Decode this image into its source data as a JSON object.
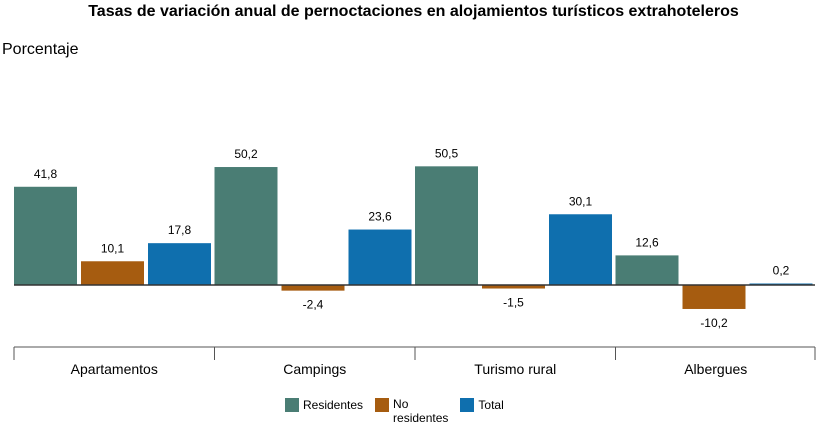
{
  "chart_data": {
    "type": "bar",
    "title": "Tasas de variación anual de pernoctaciones en alojamientos turísticos extrahoteleros",
    "ylabel": "Porcentaje",
    "categories": [
      "Apartamentos",
      "Campings",
      "Turismo rural",
      "Albergues"
    ],
    "series": [
      {
        "name": "Residentes",
        "color": "#4a7d74",
        "values": [
          41.8,
          50.2,
          50.5,
          12.6
        ],
        "labels": [
          "41,8",
          "50,2",
          "50,5",
          "12,6"
        ]
      },
      {
        "name": "No residentes",
        "color": "#a65c10",
        "values": [
          10.1,
          -2.4,
          -1.5,
          -10.2
        ],
        "labels": [
          "10,1",
          "-2,4",
          "-1,5",
          "-10,2"
        ]
      },
      {
        "name": "Total",
        "color": "#0f6fae",
        "values": [
          17.8,
          23.6,
          30.1,
          0.2
        ],
        "labels": [
          "17,8",
          "23,6",
          "30,1",
          "0,2"
        ]
      }
    ],
    "legend": {
      "position": "bottom",
      "entries": [
        "Residentes",
        "No\nresidentes",
        "Total"
      ]
    },
    "grid": false
  }
}
